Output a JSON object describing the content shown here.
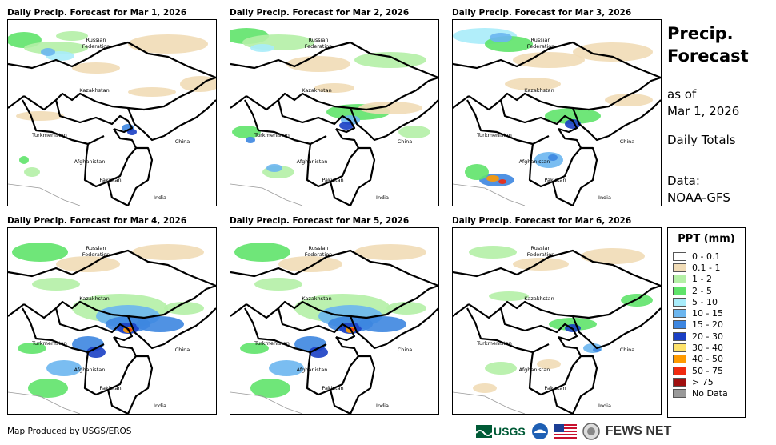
{
  "panels": [
    {
      "title": "Daily Precip. Forecast for Mar 1, 2026",
      "intensity": "light"
    },
    {
      "title": "Daily Precip. Forecast for Mar 2, 2026",
      "intensity": "moderate"
    },
    {
      "title": "Daily Precip. Forecast for Mar 3, 2026",
      "intensity": "moderate-south"
    },
    {
      "title": "Daily Precip. Forecast for Mar 4, 2026",
      "intensity": "heavy"
    },
    {
      "title": "Daily Precip. Forecast for Mar 5, 2026",
      "intensity": "heavy"
    },
    {
      "title": "Daily Precip. Forecast for Mar 6, 2026",
      "intensity": "light-east"
    }
  ],
  "country_labels": {
    "russia": "Russian\nFederation",
    "kazakhstan": "Kazakhstan",
    "turkmenistan": "Turkmenistan",
    "china": "China",
    "afghanistan": "Afghanistan",
    "pakistan": "Pakistan",
    "india": "India"
  },
  "sidebar": {
    "title_line1": "Precip.",
    "title_line2": "Forecast",
    "asof_line1": "as of",
    "asof_line2": "Mar 1, 2026",
    "totals": "Daily Totals",
    "data_line1": "Data:",
    "data_line2": "NOAA-GFS"
  },
  "legend": {
    "title": "PPT (mm)",
    "items": [
      {
        "label": "0 - 0.1",
        "color": "#ffffff"
      },
      {
        "label": "0.1 - 1",
        "color": "#f1dcb6"
      },
      {
        "label": "1 - 2",
        "color": "#b4f0a6"
      },
      {
        "label": "2 - 5",
        "color": "#5fe36a"
      },
      {
        "label": "5 - 10",
        "color": "#a8ecfa"
      },
      {
        "label": "10 - 15",
        "color": "#6cb6ef"
      },
      {
        "label": "15 - 20",
        "color": "#3d86e0"
      },
      {
        "label": "20 - 30",
        "color": "#1a3fc4"
      },
      {
        "label": "30 - 40",
        "color": "#ffe36b"
      },
      {
        "label": "40 - 50",
        "color": "#ff9a00"
      },
      {
        "label": "50 - 75",
        "color": "#f02a10"
      },
      {
        "label": "> 75",
        "color": "#a01010"
      },
      {
        "label": "No Data",
        "color": "#999999"
      }
    ]
  },
  "footer": {
    "credit": "Map Produced by USGS/EROS",
    "usgs": "USGS",
    "fewsnet": "FEWS NET"
  }
}
